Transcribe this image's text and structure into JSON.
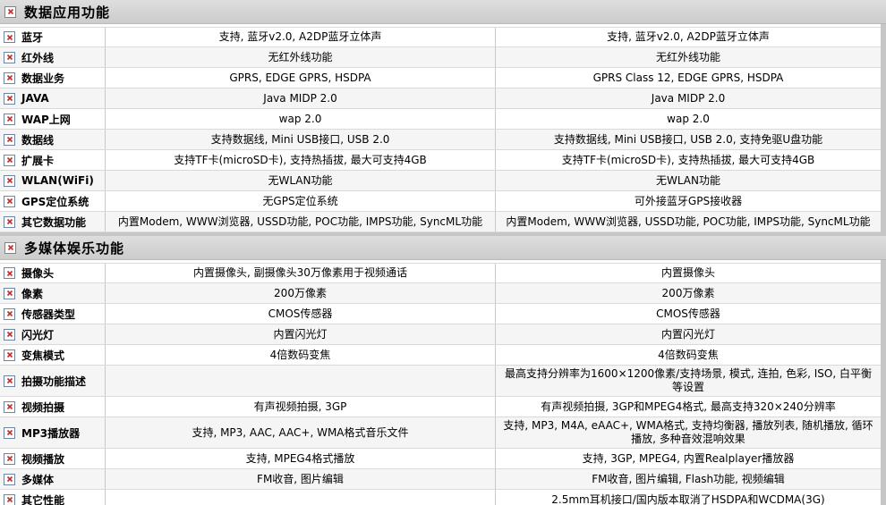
{
  "colors": {
    "page_bg": "#c6c6c6",
    "header_bg_top": "#dedede",
    "header_bg_bottom": "#cccccc",
    "zebra": "#f5f5f5",
    "row_border": "#d9d9d9",
    "col_border": "#c9c9c9",
    "icon_border": "#6f85a0",
    "accent_red": "#c03030",
    "text": "#000000"
  },
  "icon_name": "broken-image-x-icon",
  "sections": [
    {
      "title": "数据应用功能",
      "rows": [
        {
          "label": "蓝牙",
          "col1": "支持, 蓝牙v2.0, A2DP蓝牙立体声",
          "col2": "支持, 蓝牙v2.0, A2DP蓝牙立体声"
        },
        {
          "label": "红外线",
          "col1": "无红外线功能",
          "col2": "无红外线功能"
        },
        {
          "label": "数据业务",
          "col1": "GPRS, EDGE GPRS, HSDPA",
          "col2": "GPRS Class 12, EDGE GPRS, HSDPA"
        },
        {
          "label": "JAVA",
          "col1": "Java MIDP 2.0",
          "col2": "Java MIDP 2.0"
        },
        {
          "label": "WAP上网",
          "col1": "wap 2.0",
          "col2": "wap 2.0"
        },
        {
          "label": "数据线",
          "col1": "支持数据线, Mini USB接口, USB 2.0",
          "col2": "支持数据线, Mini USB接口, USB 2.0, 支持免驱U盘功能"
        },
        {
          "label": "扩展卡",
          "col1": "支持TF卡(microSD卡), 支持热插拔, 最大可支持4GB",
          "col2": "支持TF卡(microSD卡), 支持热插拔, 最大可支持4GB"
        },
        {
          "label": "WLAN(WiFi)",
          "col1": "无WLAN功能",
          "col2": "无WLAN功能"
        },
        {
          "label": "GPS定位系统",
          "col1": "无GPS定位系统",
          "col2": "可外接蓝牙GPS接收器"
        },
        {
          "label": "其它数据功能",
          "col1": "内置Modem, WWW浏览器, USSD功能, POC功能, IMPS功能, SyncML功能",
          "col2": "内置Modem, WWW浏览器, USSD功能, POC功能, IMPS功能, SyncML功能"
        }
      ]
    },
    {
      "title": "多媒体娱乐功能",
      "rows": [
        {
          "label": "摄像头",
          "col1": "内置摄像头, 副摄像头30万像素用于视频通话",
          "col2": "内置摄像头"
        },
        {
          "label": "像素",
          "col1": "200万像素",
          "col2": "200万像素"
        },
        {
          "label": "传感器类型",
          "col1": "CMOS传感器",
          "col2": "CMOS传感器"
        },
        {
          "label": "闪光灯",
          "col1": "内置闪光灯",
          "col2": "内置闪光灯"
        },
        {
          "label": "变焦模式",
          "col1": "4倍数码变焦",
          "col2": "4倍数码变焦"
        },
        {
          "label": "拍摄功能描述",
          "col1": "",
          "col2": "最高支持分辨率为1600×1200像素/支持场景, 模式, 连拍, 色彩, ISO, 白平衡等设置"
        },
        {
          "label": "视频拍摄",
          "col1": "有声视频拍摄, 3GP",
          "col2": "有声视频拍摄, 3GP和MPEG4格式, 最高支持320×240分辨率"
        },
        {
          "label": "MP3播放器",
          "col1": "支持, MP3, AAC, AAC+, WMA格式音乐文件",
          "col2": "支持, MP3, M4A, eAAC+, WMA格式, 支持均衡器, 播放列表, 随机播放, 循环播放, 多种音效混响效果"
        },
        {
          "label": "视频播放",
          "col1": "支持, MPEG4格式播放",
          "col2": "支持, 3GP, MPEG4, 内置Realplayer播放器"
        },
        {
          "label": "多媒体",
          "col1": "FM收音, 图片编辑",
          "col2": "FM收音, 图片编辑, Flash功能, 视频编辑"
        },
        {
          "label": "其它性能",
          "col1": "",
          "col2": "2.5mm耳机接口/国内版本取消了HSDPA和WCDMA(3G)"
        }
      ]
    }
  ]
}
